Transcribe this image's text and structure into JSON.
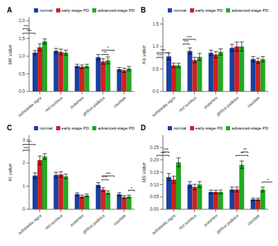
{
  "chart_data": [
    {
      "type": "bar",
      "title": "A",
      "ylabel": "MK value",
      "categories": [
        "substantia nigra",
        "red nucleus",
        "putamen",
        "globus pallidus",
        "caudate"
      ],
      "series": [
        {
          "name": "normal",
          "color": "#1a3fa0",
          "values": [
            1.1,
            1.15,
            0.72,
            0.97,
            0.63
          ],
          "error": [
            0.06,
            0.07,
            0.05,
            0.08,
            0.05
          ]
        },
        {
          "name": "early-stage PD",
          "color": "#cc2222",
          "values": [
            1.25,
            1.12,
            0.7,
            0.85,
            0.6
          ],
          "error": [
            0.1,
            0.08,
            0.05,
            0.08,
            0.06
          ]
        },
        {
          "name": "advanced-stage PD",
          "color": "#22aa22",
          "values": [
            1.42,
            1.1,
            0.72,
            0.88,
            0.65
          ],
          "error": [
            0.07,
            0.07,
            0.05,
            0.1,
            0.06
          ]
        }
      ],
      "ylim": [
        0.0,
        2.1
      ],
      "yticks": [
        {
          "value": 0,
          "label": "0.0"
        },
        0.5,
        {
          "value": 1,
          "label": "1.0"
        },
        1.5,
        {
          "value": 2,
          "label": "2.0"
        }
      ],
      "grid": false,
      "legend": "upper right",
      "annotations": [
        {
          "text": "***",
          "category": "substantia nigra",
          "between": [
            "normal",
            "advanced-stage PD"
          ],
          "y": 1.65
        },
        {
          "text": "***",
          "category": "substantia nigra",
          "between": [
            "normal",
            "early-stage PD"
          ],
          "y": 1.78
        },
        {
          "text": "**",
          "category": "globus pallidus",
          "between": [
            "normal",
            "early-stage PD"
          ],
          "y": 1.05
        },
        {
          "text": "*",
          "category": "globus pallidus",
          "between": [
            "normal",
            "advanced-stage PD"
          ],
          "y": 1.17
        }
      ]
    },
    {
      "type": "bar",
      "title": "B",
      "ylabel": "Ka value",
      "categories": [
        "substantia nigra",
        "red nucleus",
        "putamen",
        "globus pallidus",
        "caudate"
      ],
      "series": [
        {
          "name": "normal",
          "color": "#1a3fa0",
          "values": [
            0.78,
            0.9,
            0.86,
            0.97,
            0.72
          ],
          "error": [
            0.08,
            0.07,
            0.06,
            0.08,
            0.06
          ]
        },
        {
          "name": "early-stage PD",
          "color": "#cc2222",
          "values": [
            0.58,
            0.7,
            0.82,
            1.0,
            0.68
          ],
          "error": [
            0.05,
            0.06,
            0.07,
            0.1,
            0.06
          ]
        },
        {
          "name": "advanced-stage PD",
          "color": "#22aa22",
          "values": [
            0.58,
            0.77,
            0.88,
            1.0,
            0.72
          ],
          "error": [
            0.05,
            0.08,
            0.07,
            0.1,
            0.06
          ]
        }
      ],
      "ylim": [
        0.0,
        1.65
      ],
      "yticks": [
        {
          "value": 0,
          "label": "0.0"
        },
        0.5,
        {
          "value": 1,
          "label": "1.0"
        },
        1.5
      ],
      "grid": false,
      "legend": "upper right",
      "annotations": [
        {
          "text": "***",
          "category": "substantia nigra",
          "between": [
            "normal",
            "early-stage PD"
          ],
          "y": 0.76
        },
        {
          "text": "***",
          "category": "substantia nigra",
          "between": [
            "normal",
            "advanced-stage PD"
          ],
          "y": 0.86
        },
        {
          "text": "***",
          "category": "red nucleus",
          "between": [
            "normal",
            "early-stage PD"
          ],
          "y": 1.06
        },
        {
          "text": "***",
          "category": "red nucleus",
          "between": [
            "normal",
            "advanced-stage PD"
          ],
          "y": 1.16
        }
      ]
    },
    {
      "type": "bar",
      "title": "C",
      "ylabel": "Kr value",
      "categories": [
        "substantia nigra",
        "red nucleus",
        "putamen",
        "globus pallidus",
        "caudate"
      ],
      "series": [
        {
          "name": "normal",
          "color": "#1a3fa0",
          "values": [
            1.45,
            1.48,
            0.65,
            1.05,
            0.65
          ],
          "error": [
            0.12,
            0.12,
            0.06,
            0.1,
            0.07
          ]
        },
        {
          "name": "early-stage PD",
          "color": "#cc2222",
          "values": [
            2.12,
            1.5,
            0.55,
            0.85,
            0.52
          ],
          "error": [
            0.18,
            0.12,
            0.06,
            0.08,
            0.06
          ]
        },
        {
          "name": "advanced-stage PD",
          "color": "#22aa22",
          "values": [
            2.28,
            1.42,
            0.6,
            0.72,
            0.55
          ],
          "error": [
            0.12,
            0.1,
            0.06,
            0.07,
            0.06
          ]
        }
      ],
      "ylim": [
        0,
        3.2
      ],
      "yticks": [
        0,
        1,
        2,
        3
      ],
      "grid": false,
      "legend": "upper right",
      "annotations": [
        {
          "text": "***",
          "category": "substantia nigra",
          "between": [
            "normal",
            "early-stage PD"
          ],
          "y": 2.55
        },
        {
          "text": "***",
          "category": "substantia nigra",
          "between": [
            "normal",
            "advanced-stage PD"
          ],
          "y": 2.8
        },
        {
          "text": "***",
          "category": "globus pallidus",
          "between": [
            "normal",
            "early-stage PD"
          ],
          "y": 1.28
        },
        {
          "text": "***",
          "category": "globus pallidus",
          "between": [
            "normal",
            "advanced-stage PD"
          ],
          "y": 1.44
        },
        {
          "text": "*",
          "category": "caudate",
          "between": [
            "normal",
            "early-stage PD"
          ],
          "y": 0.82
        }
      ]
    },
    {
      "type": "bar",
      "title": "D",
      "ylabel": "MS value",
      "categories": [
        "substantia nigra",
        "red nucleus",
        "putamen",
        "globus pallidus",
        "caudate"
      ],
      "series": [
        {
          "name": "normal",
          "color": "#1a3fa0",
          "values": [
            0.13,
            0.1,
            0.07,
            0.08,
            0.04
          ],
          "error": [
            0.015,
            0.012,
            0.008,
            0.01,
            0.005
          ]
        },
        {
          "name": "early-stage PD",
          "color": "#cc2222",
          "values": [
            0.12,
            0.09,
            0.07,
            0.08,
            0.04
          ],
          "error": [
            0.014,
            0.011,
            0.007,
            0.01,
            0.005
          ]
        },
        {
          "name": "advanced-stage PD",
          "color": "#22aa22",
          "values": [
            0.19,
            0.1,
            0.07,
            0.18,
            0.08
          ],
          "error": [
            0.018,
            0.012,
            0.008,
            0.015,
            0.01
          ]
        }
      ],
      "ylim": [
        0,
        0.3
      ],
      "yticks": [
        {
          "value": 0,
          "label": "0.00"
        },
        0.05,
        {
          "value": 0.1,
          "label": "0.10"
        },
        0.15,
        {
          "value": 0.2,
          "label": "0.20"
        },
        0.25
      ],
      "grid": false,
      "legend": "upper right",
      "annotations": [
        {
          "text": "***",
          "category": "substantia nigra",
          "between": [
            "normal",
            "advanced-stage PD"
          ],
          "y": 0.218
        },
        {
          "text": "***",
          "category": "substantia nigra",
          "between": [
            "early-stage PD",
            "advanced-stage PD"
          ],
          "y": 0.232
        },
        {
          "text": "**",
          "category": "globus pallidus",
          "between": [
            "normal",
            "advanced-stage PD"
          ],
          "y": 0.218
        },
        {
          "text": "**",
          "category": "globus pallidus",
          "between": [
            "early-stage PD",
            "advanced-stage PD"
          ],
          "y": 0.232
        },
        {
          "text": "*",
          "category": "caudate",
          "between": [
            "normal",
            "advanced-stage PD"
          ],
          "y": 0.11
        }
      ]
    }
  ]
}
